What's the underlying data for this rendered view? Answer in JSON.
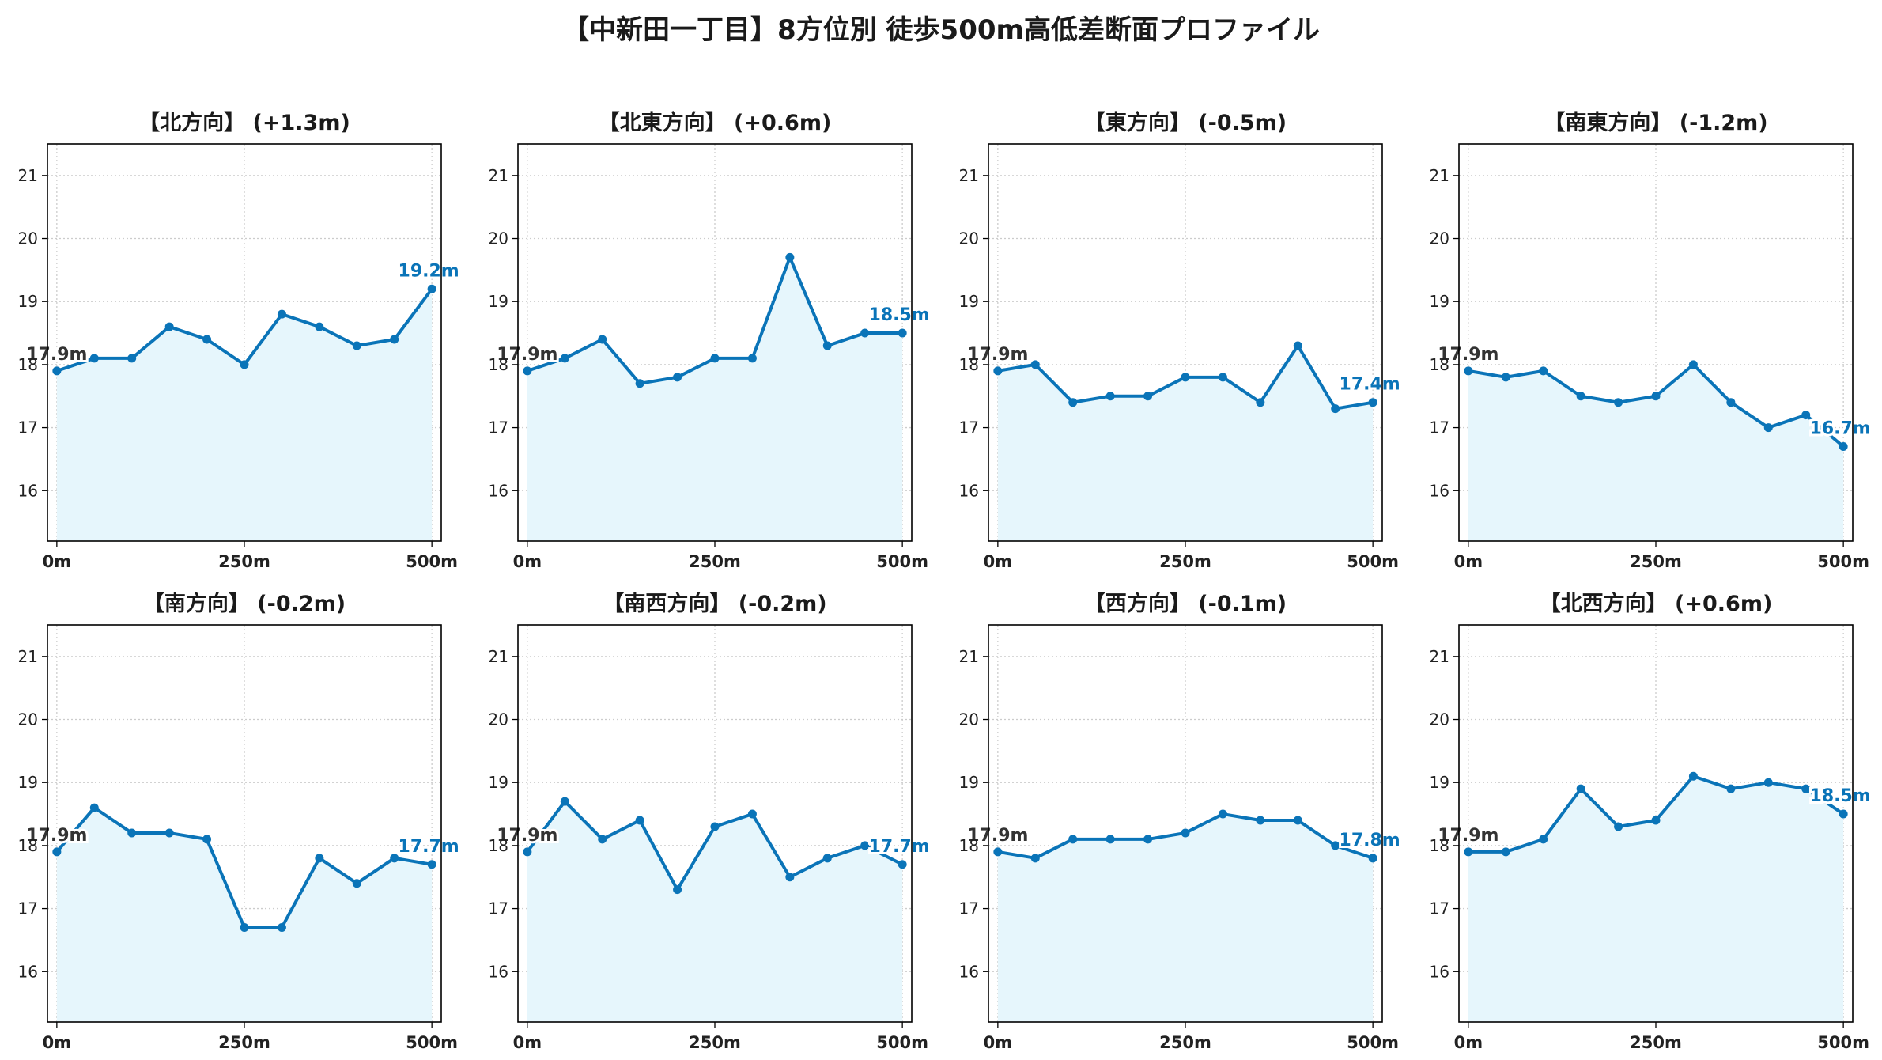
{
  "title": "【中新田一丁目】8方位別 徒歩500m高低差断面プロファイル",
  "colors": {
    "line": "#0a74b8",
    "fill": "#e6f6fc",
    "grid": "#cccccc",
    "start_label": "#333333",
    "end_label": "#0a74b8"
  },
  "chart_data": [
    {
      "type": "area",
      "title": "【北方向】 (+1.3m)",
      "x": [
        0,
        50,
        100,
        150,
        200,
        250,
        300,
        350,
        400,
        450,
        500
      ],
      "values": [
        17.9,
        18.1,
        18.1,
        18.6,
        18.4,
        18.0,
        18.8,
        18.6,
        18.3,
        18.4,
        19.2
      ],
      "start_label": "17.9m",
      "end_label": "19.2m",
      "xticks": [
        0,
        250,
        500
      ],
      "xtick_labels": [
        "0m",
        "250m",
        "500m"
      ],
      "yticks": [
        16,
        17,
        18,
        19,
        20,
        21
      ],
      "ylim": [
        15.2,
        21.5
      ],
      "xlim": [
        -12.5,
        512.5
      ],
      "grid": true
    },
    {
      "type": "area",
      "title": "【北東方向】 (+0.6m)",
      "x": [
        0,
        50,
        100,
        150,
        200,
        250,
        300,
        350,
        400,
        450,
        500
      ],
      "values": [
        17.9,
        18.1,
        18.4,
        17.7,
        17.8,
        18.1,
        18.1,
        19.7,
        18.3,
        18.5,
        18.5
      ],
      "start_label": "17.9m",
      "end_label": "18.5m",
      "xticks": [
        0,
        250,
        500
      ],
      "xtick_labels": [
        "0m",
        "250m",
        "500m"
      ],
      "yticks": [
        16,
        17,
        18,
        19,
        20,
        21
      ],
      "ylim": [
        15.2,
        21.5
      ],
      "xlim": [
        -12.5,
        512.5
      ],
      "grid": true
    },
    {
      "type": "area",
      "title": "【東方向】 (-0.5m)",
      "x": [
        0,
        50,
        100,
        150,
        200,
        250,
        300,
        350,
        400,
        450,
        500
      ],
      "values": [
        17.9,
        18.0,
        17.4,
        17.5,
        17.5,
        17.8,
        17.8,
        17.4,
        18.3,
        17.3,
        17.4
      ],
      "start_label": "17.9m",
      "end_label": "17.4m",
      "xticks": [
        0,
        250,
        500
      ],
      "xtick_labels": [
        "0m",
        "250m",
        "500m"
      ],
      "yticks": [
        16,
        17,
        18,
        19,
        20,
        21
      ],
      "ylim": [
        15.2,
        21.5
      ],
      "xlim": [
        -12.5,
        512.5
      ],
      "grid": true
    },
    {
      "type": "area",
      "title": "【南東方向】 (-1.2m)",
      "x": [
        0,
        50,
        100,
        150,
        200,
        250,
        300,
        350,
        400,
        450,
        500
      ],
      "values": [
        17.9,
        17.8,
        17.9,
        17.5,
        17.4,
        17.5,
        18.0,
        17.4,
        17.0,
        17.2,
        16.7
      ],
      "start_label": "17.9m",
      "end_label": "16.7m",
      "xticks": [
        0,
        250,
        500
      ],
      "xtick_labels": [
        "0m",
        "250m",
        "500m"
      ],
      "yticks": [
        16,
        17,
        18,
        19,
        20,
        21
      ],
      "ylim": [
        15.2,
        21.5
      ],
      "xlim": [
        -12.5,
        512.5
      ],
      "grid": true
    },
    {
      "type": "area",
      "title": "【南方向】 (-0.2m)",
      "x": [
        0,
        50,
        100,
        150,
        200,
        250,
        300,
        350,
        400,
        450,
        500
      ],
      "values": [
        17.9,
        18.6,
        18.2,
        18.2,
        18.1,
        16.7,
        16.7,
        17.8,
        17.4,
        17.8,
        17.7
      ],
      "start_label": "17.9m",
      "end_label": "17.7m",
      "xticks": [
        0,
        250,
        500
      ],
      "xtick_labels": [
        "0m",
        "250m",
        "500m"
      ],
      "yticks": [
        16,
        17,
        18,
        19,
        20,
        21
      ],
      "ylim": [
        15.2,
        21.5
      ],
      "xlim": [
        -12.5,
        512.5
      ],
      "grid": true
    },
    {
      "type": "area",
      "title": "【南西方向】 (-0.2m)",
      "x": [
        0,
        50,
        100,
        150,
        200,
        250,
        300,
        350,
        400,
        450,
        500
      ],
      "values": [
        17.9,
        18.7,
        18.1,
        18.4,
        17.3,
        18.3,
        18.5,
        17.5,
        17.8,
        18.0,
        17.7
      ],
      "start_label": "17.9m",
      "end_label": "17.7m",
      "xticks": [
        0,
        250,
        500
      ],
      "xtick_labels": [
        "0m",
        "250m",
        "500m"
      ],
      "yticks": [
        16,
        17,
        18,
        19,
        20,
        21
      ],
      "ylim": [
        15.2,
        21.5
      ],
      "xlim": [
        -12.5,
        512.5
      ],
      "grid": true
    },
    {
      "type": "area",
      "title": "【西方向】 (-0.1m)",
      "x": [
        0,
        50,
        100,
        150,
        200,
        250,
        300,
        350,
        400,
        450,
        500
      ],
      "values": [
        17.9,
        17.8,
        18.1,
        18.1,
        18.1,
        18.2,
        18.5,
        18.4,
        18.4,
        18.0,
        17.8
      ],
      "start_label": "17.9m",
      "end_label": "17.8m",
      "xticks": [
        0,
        250,
        500
      ],
      "xtick_labels": [
        "0m",
        "250m",
        "500m"
      ],
      "yticks": [
        16,
        17,
        18,
        19,
        20,
        21
      ],
      "ylim": [
        15.2,
        21.5
      ],
      "xlim": [
        -12.5,
        512.5
      ],
      "grid": true
    },
    {
      "type": "area",
      "title": "【北西方向】 (+0.6m)",
      "x": [
        0,
        50,
        100,
        150,
        200,
        250,
        300,
        350,
        400,
        450,
        500
      ],
      "values": [
        17.9,
        17.9,
        18.1,
        18.9,
        18.3,
        18.4,
        19.1,
        18.9,
        19.0,
        18.9,
        18.5
      ],
      "start_label": "17.9m",
      "end_label": "18.5m",
      "xticks": [
        0,
        250,
        500
      ],
      "xtick_labels": [
        "0m",
        "250m",
        "500m"
      ],
      "yticks": [
        16,
        17,
        18,
        19,
        20,
        21
      ],
      "ylim": [
        15.2,
        21.5
      ],
      "xlim": [
        -12.5,
        512.5
      ],
      "grid": true
    }
  ]
}
